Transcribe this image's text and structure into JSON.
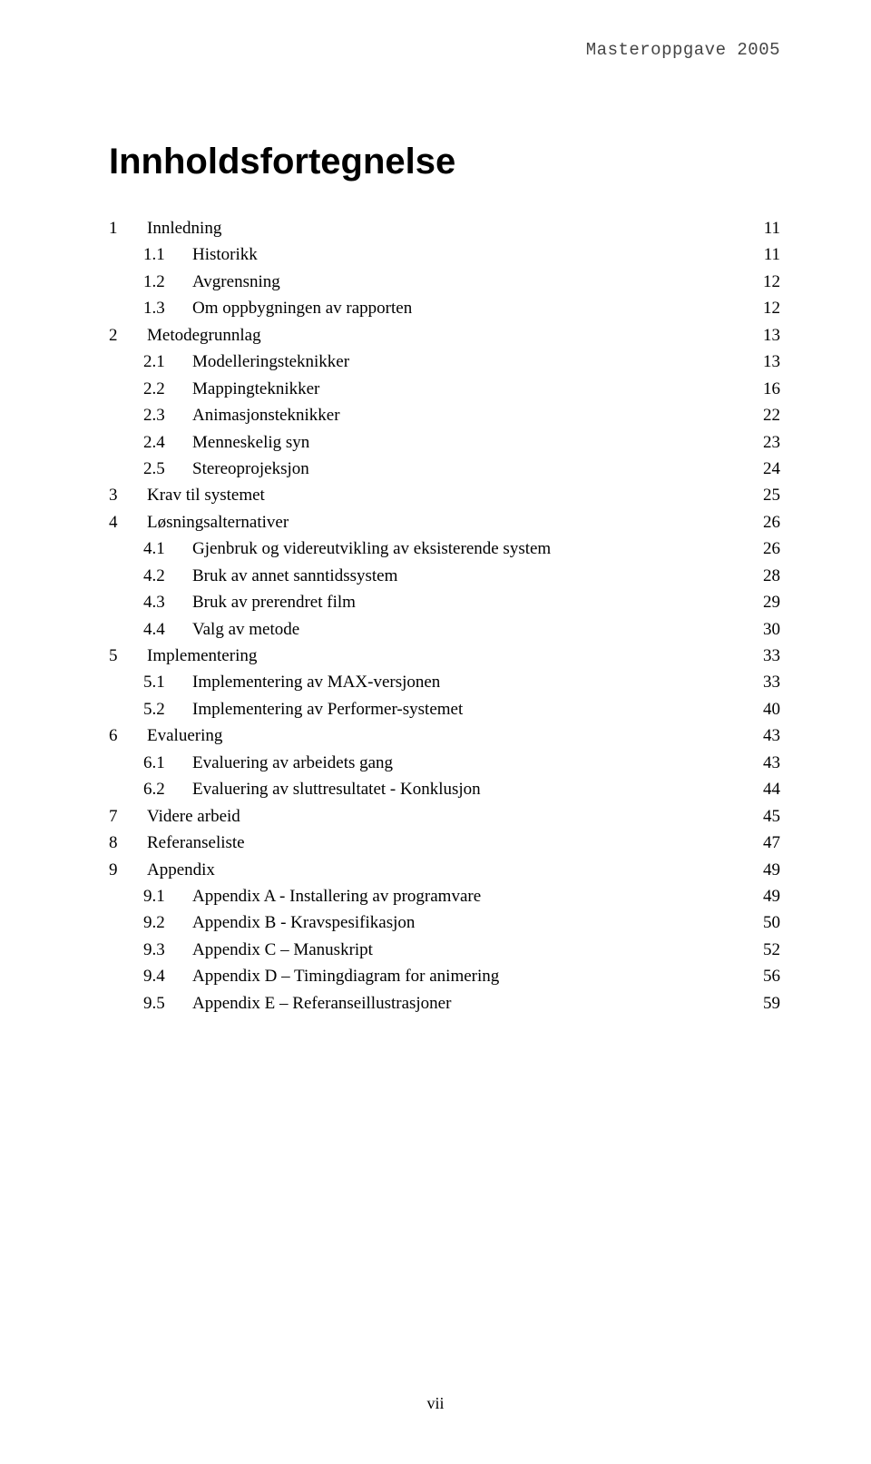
{
  "header": "Masteroppgave 2005",
  "title": "Innholdsfortegnelse",
  "page_number": "vii",
  "toc": [
    {
      "level": 1,
      "num": "1",
      "label": "Innledning",
      "page": "11"
    },
    {
      "level": 2,
      "num": "1.1",
      "label": "Historikk",
      "page": "11"
    },
    {
      "level": 2,
      "num": "1.2",
      "label": "Avgrensning",
      "page": "12"
    },
    {
      "level": 2,
      "num": "1.3",
      "label": "Om oppbygningen av rapporten",
      "page": "12"
    },
    {
      "level": 1,
      "num": "2",
      "label": "Metodegrunnlag",
      "page": "13"
    },
    {
      "level": 2,
      "num": "2.1",
      "label": "Modelleringsteknikker",
      "page": "13"
    },
    {
      "level": 2,
      "num": "2.2",
      "label": "Mappingteknikker",
      "page": "16"
    },
    {
      "level": 2,
      "num": "2.3",
      "label": "Animasjonsteknikker",
      "page": "22"
    },
    {
      "level": 2,
      "num": "2.4",
      "label": "Menneskelig syn",
      "page": "23"
    },
    {
      "level": 2,
      "num": "2.5",
      "label": "Stereoprojeksjon",
      "page": "24"
    },
    {
      "level": 1,
      "num": "3",
      "label": "Krav til systemet",
      "page": "25"
    },
    {
      "level": 1,
      "num": "4",
      "label": "Løsningsalternativer",
      "page": "26"
    },
    {
      "level": 2,
      "num": "4.1",
      "label": "Gjenbruk og videreutvikling av eksisterende system",
      "page": "26"
    },
    {
      "level": 2,
      "num": "4.2",
      "label": "Bruk av annet sanntidssystem",
      "page": "28"
    },
    {
      "level": 2,
      "num": "4.3",
      "label": "Bruk av prerendret film",
      "page": "29"
    },
    {
      "level": 2,
      "num": "4.4",
      "label": "Valg av metode",
      "page": "30"
    },
    {
      "level": 1,
      "num": "5",
      "label": "Implementering",
      "page": "33"
    },
    {
      "level": 2,
      "num": "5.1",
      "label": "Implementering av MAX-versjonen",
      "page": "33"
    },
    {
      "level": 2,
      "num": "5.2",
      "label": "Implementering av Performer-systemet",
      "page": "40"
    },
    {
      "level": 1,
      "num": "6",
      "label": "Evaluering",
      "page": "43"
    },
    {
      "level": 2,
      "num": "6.1",
      "label": "Evaluering av arbeidets gang",
      "page": "43"
    },
    {
      "level": 2,
      "num": "6.2",
      "label": "Evaluering av sluttresultatet - Konklusjon",
      "page": "44"
    },
    {
      "level": 1,
      "num": "7",
      "label": "Videre arbeid",
      "page": "45"
    },
    {
      "level": 1,
      "num": "8",
      "label": "Referanseliste",
      "page": "47"
    },
    {
      "level": 1,
      "num": "9",
      "label": "Appendix",
      "page": "49"
    },
    {
      "level": 2,
      "num": "9.1",
      "label": "Appendix A - Installering av programvare",
      "page": "49"
    },
    {
      "level": 2,
      "num": "9.2",
      "label": "Appendix B - Kravspesifikasjon",
      "page": "50"
    },
    {
      "level": 2,
      "num": "9.3",
      "label": "Appendix C – Manuskript",
      "page": "52"
    },
    {
      "level": 2,
      "num": "9.4",
      "label": "Appendix D – Timingdiagram for animering",
      "page": "56"
    },
    {
      "level": 2,
      "num": "9.5",
      "label": "Appendix E – Referanseillustrasjoner",
      "page": "59"
    }
  ]
}
